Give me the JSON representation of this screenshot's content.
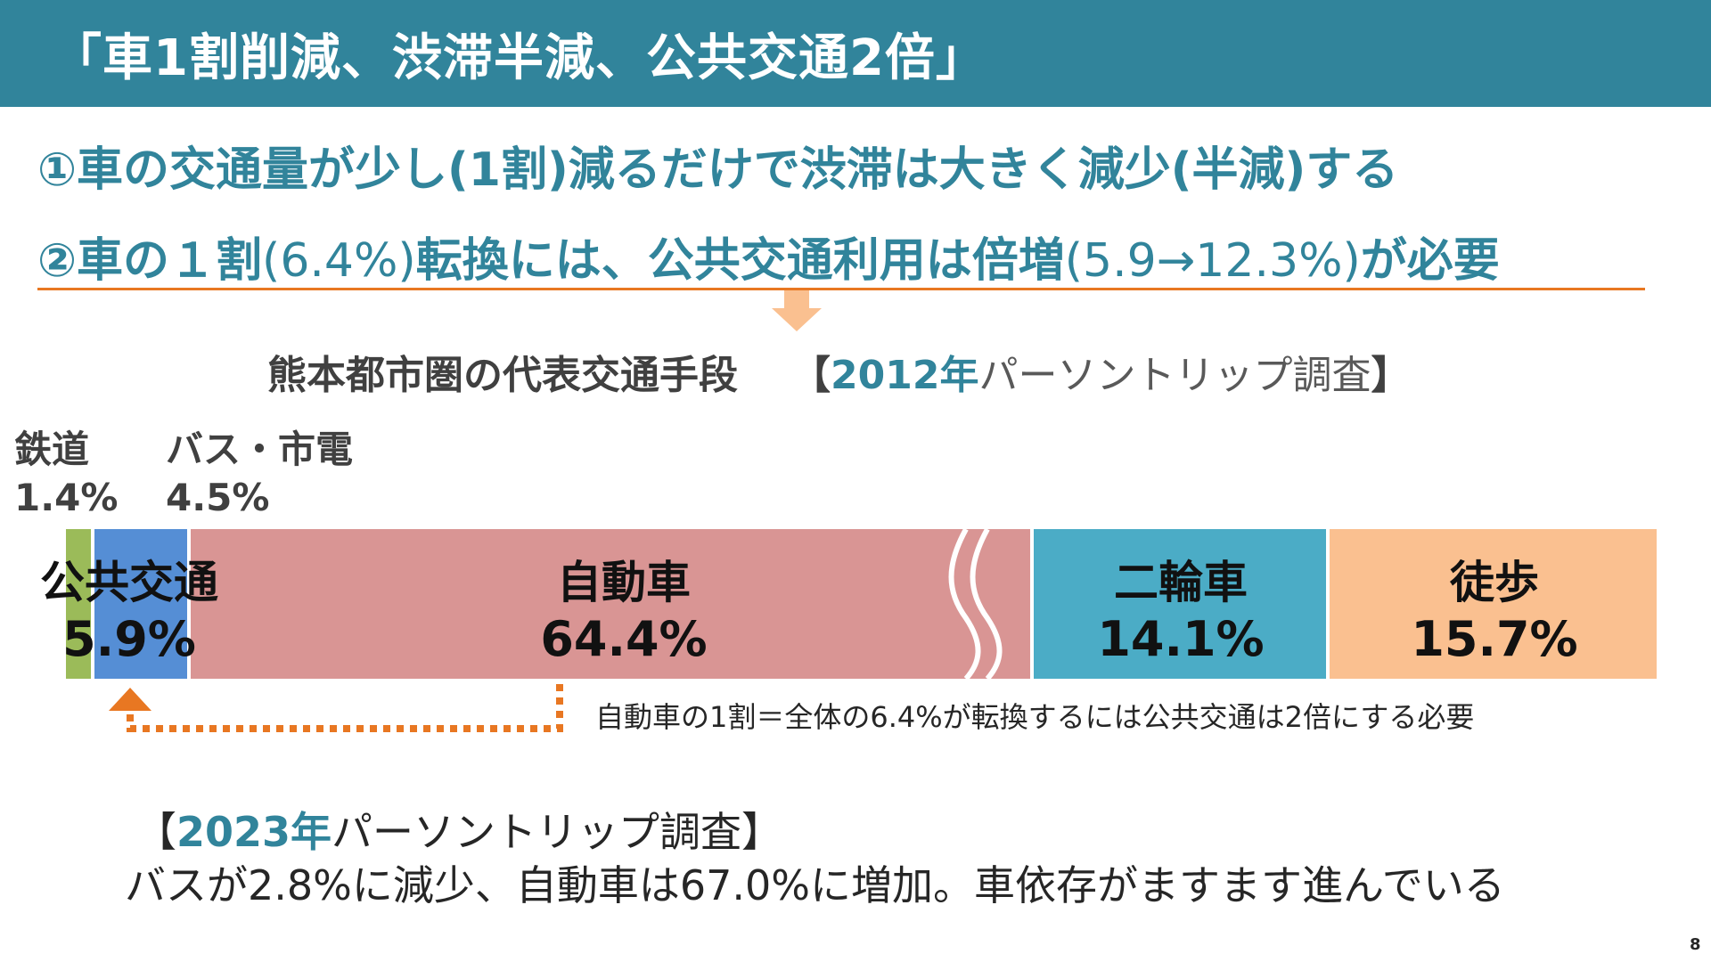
{
  "header": {
    "title": "「車1割削減、渋滞半減、公共交通2倍」"
  },
  "points": {
    "p1": "①車の交通量が少し(1割)減るだけで渋滞は大きく減少(半減)する",
    "p2_a": "②車の１割",
    "p2_b": "(6.4%)",
    "p2_c": "転換には、公共交通利用は倍増",
    "p2_d": "(5.9→12.3%)",
    "p2_e": "が必要"
  },
  "chart_heading": {
    "main": "熊本都市圏の代表交通手段",
    "bracket_open": "【",
    "year": "2012年",
    "survey": "パーソントリップ調査",
    "bracket_close": "】"
  },
  "sub_labels": {
    "rail_name": "鉄道",
    "rail_value": "1.4%",
    "bus_name": "バス・市電",
    "bus_value": "4.5%"
  },
  "chart_data": {
    "type": "bar",
    "orientation": "horizontal-stacked",
    "categories": [
      "鉄道",
      "バス・市電",
      "自動車",
      "二輪車",
      "徒歩"
    ],
    "values": [
      1.4,
      4.5,
      64.4,
      14.1,
      15.7
    ],
    "unit": "%",
    "groups": [
      {
        "name": "公共交通",
        "value_label": "5.9%"
      },
      {
        "name": "自動車",
        "value_label": "64.4%"
      },
      {
        "name": "二輪車",
        "value_label": "14.1%"
      },
      {
        "name": "徒歩",
        "value_label": "15.7%"
      }
    ],
    "colors": [
      "#9bbb59",
      "#558ed5",
      "#d99594",
      "#4bacc6",
      "#fac090"
    ],
    "axis_break": "自動車"
  },
  "note": "自動車の1割＝全体の6.4%が転換するには公共交通は2倍にする必要",
  "survey2023": {
    "bracket_open": "【",
    "year": "2023年",
    "survey": "パーソントリップ調査",
    "bracket_close": "】"
  },
  "conclusion": "バスが2.8%に減少、自動車は67.0%に増加。車依存がますます進んでいる",
  "page_number": "8",
  "colors": {
    "header_bg": "#31849b",
    "accent_text": "#31849b",
    "orange": "#e87722",
    "arrow_fill": "#fac090"
  }
}
